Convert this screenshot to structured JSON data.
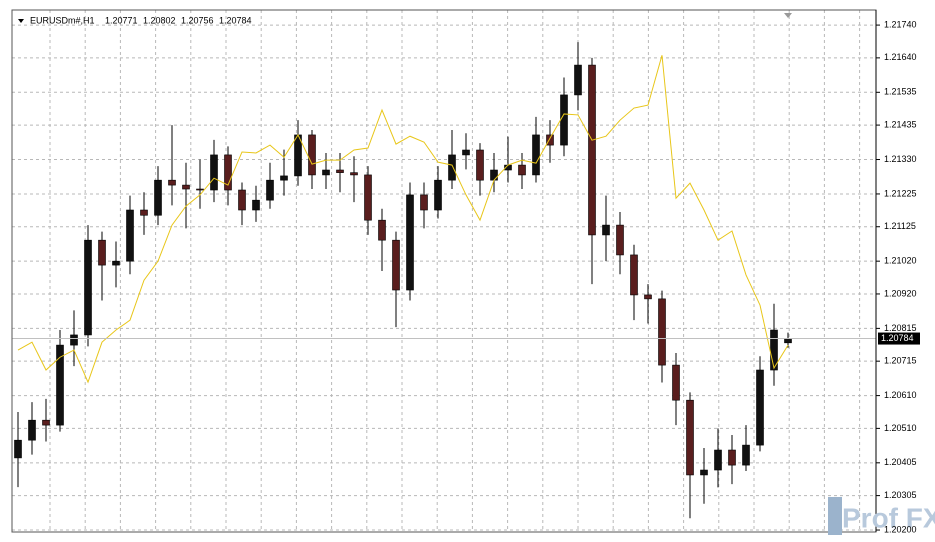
{
  "chart_data": {
    "type": "candlestick",
    "title": "EURUSDm#,H1",
    "watermark": "Prof FX",
    "up_color": "#111111",
    "down_color": "#5a1e1e",
    "grid": true,
    "ylim": [
      1.20194,
      1.21786
    ],
    "yticks": [
      {
        "value": 1.2174,
        "label": "1.21740"
      },
      {
        "value": 1.2164,
        "label": "1.21640"
      },
      1.21535,
      1.21435,
      {
        "value": 1.2133,
        "label": "1.21330"
      },
      1.21225,
      1.21125,
      {
        "value": 1.2102,
        "label": "1.21020"
      },
      {
        "value": 1.2092,
        "label": "1.20920"
      },
      1.20815,
      1.20715,
      {
        "value": 1.2061,
        "label": "1.20610"
      },
      {
        "value": 1.2051,
        "label": "1.20510"
      },
      1.20405,
      1.20305,
      {
        "value": 1.202,
        "label": "1.20200"
      }
    ],
    "open": [
      1.2042,
      1.20474,
      1.20535,
      1.2052,
      1.20764,
      1.20795,
      1.21084,
      1.21008,
      1.2102,
      1.21176,
      1.2116,
      1.21267,
      1.21252,
      1.2124,
      1.21237,
      1.21344,
      1.21237,
      1.21176,
      1.21206,
      1.21267,
      1.2128,
      1.21405,
      1.21283,
      1.21298,
      1.2129,
      1.21283,
      1.21145,
      1.21084,
      1.20932,
      1.21222,
      1.21176,
      1.21267,
      1.21344,
      1.21359,
      1.21267,
      1.21298,
      1.21313,
      1.21283,
      1.21405,
      1.21374,
      1.21527,
      1.21618,
      1.211,
      1.2113,
      1.21039,
      1.20917,
      1.20905,
      1.20703,
      1.20596,
      1.20368,
      1.20383,
      1.20444,
      1.20398,
      1.20459,
      1.20688,
      1.20771
    ],
    "high": [
      1.2056,
      1.2059,
      1.206,
      1.2081,
      1.2087,
      1.2113,
      1.2111,
      1.2108,
      1.2122,
      1.2123,
      1.2131,
      1.21435,
      1.2132,
      1.2133,
      1.2139,
      1.2137,
      1.2126,
      1.2125,
      1.2132,
      1.2136,
      1.2145,
      1.2142,
      1.2135,
      1.2135,
      1.2134,
      1.2131,
      1.2118,
      1.2111,
      1.2126,
      1.2126,
      1.2131,
      1.2142,
      1.2141,
      1.2138,
      1.2135,
      1.214,
      1.2135,
      1.2146,
      1.2145,
      1.2158,
      1.21688,
      1.2164,
      1.2122,
      1.2117,
      1.2107,
      1.2095,
      1.2093,
      1.2074,
      1.2062,
      1.2045,
      1.2051,
      1.2049,
      1.2052,
      1.2073,
      1.2089,
      1.20802
    ],
    "low": [
      1.20331,
      1.2043,
      1.2047,
      1.205,
      1.207,
      1.2076,
      1.209,
      1.2094,
      1.2098,
      1.211,
      1.2113,
      1.2119,
      1.2112,
      1.2118,
      1.212,
      1.2119,
      1.2113,
      1.2114,
      1.2118,
      1.2122,
      1.2125,
      1.2124,
      1.2124,
      1.2123,
      1.212,
      1.211,
      1.2099,
      1.20819,
      1.209,
      1.2112,
      1.2115,
      1.2124,
      1.213,
      1.2122,
      1.2123,
      1.2126,
      1.2124,
      1.2126,
      1.2132,
      1.2134,
      1.2148,
      1.2095,
      1.2102,
      1.2098,
      1.2084,
      1.2083,
      1.2065,
      1.2052,
      1.20236,
      1.2028,
      1.2033,
      1.2034,
      1.2038,
      1.2044,
      1.2064,
      1.20756
    ],
    "close": [
      1.20474,
      1.20535,
      1.2052,
      1.20764,
      1.20795,
      1.21084,
      1.21008,
      1.2102,
      1.21176,
      1.2116,
      1.21267,
      1.21252,
      1.2124,
      1.21237,
      1.21344,
      1.21237,
      1.21176,
      1.21206,
      1.21267,
      1.2128,
      1.21405,
      1.21283,
      1.21298,
      1.2129,
      1.21283,
      1.21145,
      1.21084,
      1.20932,
      1.21222,
      1.21176,
      1.21267,
      1.21344,
      1.21359,
      1.21267,
      1.21298,
      1.21313,
      1.21283,
      1.21405,
      1.21374,
      1.21527,
      1.21618,
      1.211,
      1.2113,
      1.21039,
      1.20917,
      1.20905,
      1.20703,
      1.20596,
      1.20368,
      1.20383,
      1.20444,
      1.20398,
      1.20459,
      1.20688,
      1.2081,
      1.20784
    ],
    "overlay": {
      "color": "#e8c619",
      "values": [
        1.20749,
        1.20773,
        1.20688,
        1.20727,
        1.20749,
        1.20651,
        1.20773,
        1.2081,
        1.2084,
        1.20962,
        1.2102,
        1.2113,
        1.21188,
        1.21222,
        1.21273,
        1.21252,
        1.21353,
        1.2135,
        1.21374,
        1.21337,
        1.21405,
        1.21316,
        1.21328,
        1.21328,
        1.21359,
        1.21365,
        1.21481,
        1.21377,
        1.21401,
        1.21383,
        1.21322,
        1.21313,
        1.21222,
        1.21145,
        1.21267,
        1.21313,
        1.21328,
        1.21319,
        1.21395,
        1.21469,
        1.21466,
        1.21389,
        1.21401,
        1.2145,
        1.21487,
        1.21496,
        1.21648,
        1.21212,
        1.21258,
        1.21176,
        1.21084,
        1.21112,
        1.20978,
        1.20886,
        1.20694,
        1.20764
      ]
    }
  }
}
